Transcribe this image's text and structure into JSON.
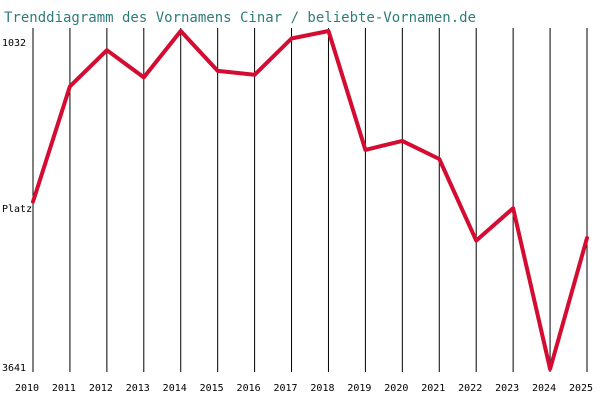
{
  "chart_data": {
    "type": "line",
    "title": "Trenddiagramm des Vornamens Cinar / beliebte-Vornamen.de",
    "ylabel": "Platz",
    "y_top_label": "1032",
    "y_bottom_label": "3641",
    "ylim": [
      1032,
      3641
    ],
    "y_inverted": true,
    "grid": "vertical lines at each year",
    "x": [
      "2010",
      "2011",
      "2012",
      "2013",
      "2014",
      "2015",
      "2016",
      "2017",
      "2018",
      "2019",
      "2020",
      "2021",
      "2022",
      "2023",
      "2024",
      "2025"
    ],
    "series": [
      {
        "values": [
          2350,
          1460,
          1180,
          1390,
          1032,
          1340,
          1370,
          1090,
          1032,
          1950,
          1880,
          2020,
          2650,
          2400,
          3641,
          2630
        ]
      }
    ],
    "line_color": "#d40c32",
    "title_color": "#2e7d7b"
  }
}
